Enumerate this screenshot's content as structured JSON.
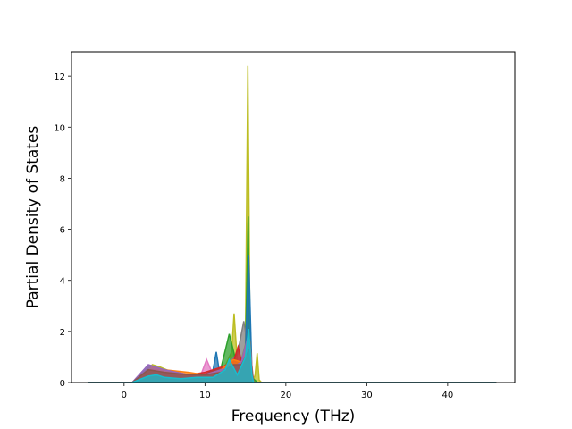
{
  "chart_data": {
    "type": "area",
    "xlabel": "Frequency (THz)",
    "ylabel": "Partial Density of States",
    "xlim": [
      -6.5,
      48.3
    ],
    "ylim": [
      0,
      12.95
    ],
    "xticks": [
      "0",
      "10",
      "20",
      "30",
      "40"
    ],
    "xtick_values": [
      0,
      10,
      20,
      30,
      40
    ],
    "yticks": [
      "0",
      "2",
      "4",
      "6",
      "8",
      "10",
      "12"
    ],
    "ytick_values": [
      0,
      2,
      4,
      6,
      8,
      10,
      12
    ],
    "grid": false,
    "series": [
      {
        "color": "#bcbd22",
        "x": [
          -4.5,
          1.0,
          2.5,
          3.5,
          4.5,
          6.0,
          8.0,
          10.0,
          12.0,
          13.3,
          13.6,
          14.0,
          14.5,
          15.0,
          15.3,
          15.45,
          15.6,
          16.0,
          16.2,
          16.45,
          16.7,
          17.0,
          46.0
        ],
        "y": [
          0,
          0,
          0.4,
          0.7,
          0.6,
          0.4,
          0.3,
          0.2,
          0.3,
          1.2,
          2.7,
          0.8,
          0.9,
          1.5,
          12.4,
          6.5,
          0.3,
          0.1,
          0.3,
          1.15,
          0.1,
          0,
          0
        ]
      },
      {
        "color": "#2ca02c",
        "x": [
          -4.5,
          1.0,
          3.0,
          5.0,
          8.0,
          10.0,
          12.0,
          13.0,
          13.4,
          14.0,
          15.0,
          15.35,
          15.5,
          15.8,
          16.5,
          46.0
        ],
        "y": [
          0,
          0,
          0.5,
          0.4,
          0.3,
          0.3,
          0.6,
          1.9,
          1.4,
          0.6,
          1.2,
          6.5,
          1.2,
          0.2,
          0,
          0
        ]
      },
      {
        "color": "#7f7f7f",
        "x": [
          -4.5,
          1.0,
          3.0,
          5.0,
          8.0,
          10.0,
          12.0,
          13.0,
          14.0,
          14.8,
          15.2,
          15.5,
          16.0,
          46.0
        ],
        "y": [
          0,
          0,
          0.6,
          0.5,
          0.3,
          0.3,
          0.5,
          0.8,
          1.1,
          2.4,
          1.6,
          0.4,
          0,
          0
        ]
      },
      {
        "color": "#e377c2",
        "x": [
          -4.5,
          1.0,
          3.0,
          5.0,
          8.0,
          9.5,
          10.2,
          11.0,
          12.5,
          13.5,
          14.5,
          15.5,
          16.0,
          46.0
        ],
        "y": [
          0,
          0,
          0.4,
          0.5,
          0.2,
          0.3,
          0.9,
          0.3,
          0.4,
          0.7,
          0.5,
          0.9,
          0,
          0
        ]
      },
      {
        "color": "#1f77b4",
        "x": [
          -4.5,
          1.0,
          3.0,
          5.0,
          8.0,
          10.0,
          11.0,
          11.4,
          11.8,
          12.5,
          13.0,
          13.5,
          14.0,
          15.0,
          15.4,
          15.8,
          16.0,
          46.0
        ],
        "y": [
          0,
          0,
          0.5,
          0.4,
          0.3,
          0.3,
          0.5,
          1.2,
          0.4,
          0.6,
          0.5,
          0.9,
          0.8,
          1.0,
          5.0,
          0.5,
          0,
          0
        ]
      },
      {
        "color": "#d62728",
        "x": [
          -4.5,
          1.0,
          3.0,
          5.0,
          8.0,
          10.0,
          12.0,
          13.5,
          14.1,
          14.6,
          15.5,
          16.0,
          46.0
        ],
        "y": [
          0,
          0,
          0.5,
          0.5,
          0.3,
          0.4,
          0.6,
          0.8,
          1.4,
          0.7,
          1.4,
          0,
          0
        ]
      },
      {
        "color": "#ff7f0e",
        "x": [
          -4.5,
          1.0,
          3.5,
          5.0,
          8.0,
          10.0,
          12.0,
          13.5,
          14.5,
          15.5,
          16.0,
          46.0
        ],
        "y": [
          0,
          0,
          0.6,
          0.5,
          0.4,
          0.3,
          0.5,
          0.9,
          0.8,
          1.7,
          0,
          0
        ]
      },
      {
        "color": "#9467bd",
        "x": [
          -4.5,
          1.0,
          3.0,
          5.0,
          8.0,
          10.0,
          12.0,
          13.5,
          14.5,
          15.4,
          16.0,
          46.0
        ],
        "y": [
          0,
          0,
          0.7,
          0.5,
          0.3,
          0.3,
          0.5,
          0.6,
          0.8,
          1.9,
          0,
          0
        ]
      },
      {
        "color": "#8c564b",
        "x": [
          -4.5,
          1.0,
          3.0,
          5.0,
          8.0,
          10.0,
          12.0,
          13.5,
          14.5,
          15.5,
          16.0,
          46.0
        ],
        "y": [
          0,
          0,
          0.5,
          0.4,
          0.3,
          0.3,
          0.4,
          0.7,
          0.7,
          1.3,
          0,
          0
        ]
      },
      {
        "color": "#17becf",
        "x": [
          -4.5,
          1.0,
          3.0,
          4.0,
          5.0,
          7.0,
          9.0,
          11.0,
          12.5,
          13.0,
          14.0,
          15.0,
          15.4,
          15.8,
          16.0,
          46.0
        ],
        "y": [
          0,
          0,
          0.25,
          0.3,
          0.2,
          0.15,
          0.2,
          0.2,
          0.5,
          0.9,
          0.3,
          1.0,
          2.1,
          0.3,
          0,
          0
        ]
      }
    ]
  }
}
